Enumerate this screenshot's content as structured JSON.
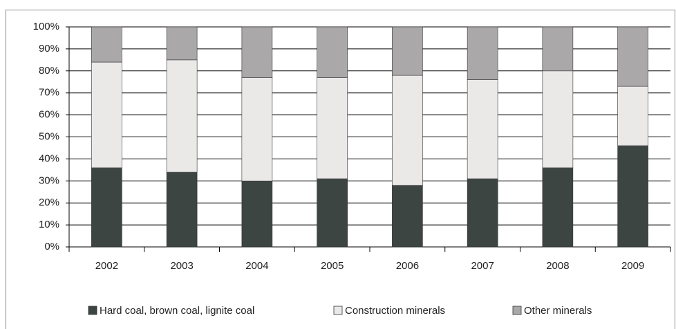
{
  "chart_data": {
    "type": "stacked_bar",
    "categories": [
      "2002",
      "2003",
      "2004",
      "2005",
      "2006",
      "2007",
      "2008",
      "2009"
    ],
    "series": [
      {
        "name": "Hard coal, brown coal, lignite coal",
        "color": "#3d4543",
        "values": [
          36,
          34,
          30,
          31,
          28,
          31,
          36,
          46
        ]
      },
      {
        "name": "Construction minerals",
        "color": "#ebe9e8",
        "values": [
          48,
          51,
          47,
          46,
          50,
          45,
          44,
          27
        ]
      },
      {
        "name": "Other minerals",
        "color": "#aaa8a8",
        "values": [
          16,
          15,
          23,
          23,
          22,
          24,
          20,
          27
        ]
      }
    ],
    "ylim": [
      0,
      100
    ],
    "yticks": [
      {
        "value": 0,
        "label": "0%"
      },
      {
        "value": 10,
        "label": "10%"
      },
      {
        "value": 20,
        "label": "20%"
      },
      {
        "value": 30,
        "label": "30%"
      },
      {
        "value": 40,
        "label": "40%"
      },
      {
        "value": 50,
        "label": "50%"
      },
      {
        "value": 60,
        "label": "60%"
      },
      {
        "value": 70,
        "label": "70%"
      },
      {
        "value": 80,
        "label": "80%"
      },
      {
        "value": 90,
        "label": "90%"
      },
      {
        "value": 100,
        "label": "100%"
      }
    ],
    "grid": true,
    "legend": "bottom"
  }
}
